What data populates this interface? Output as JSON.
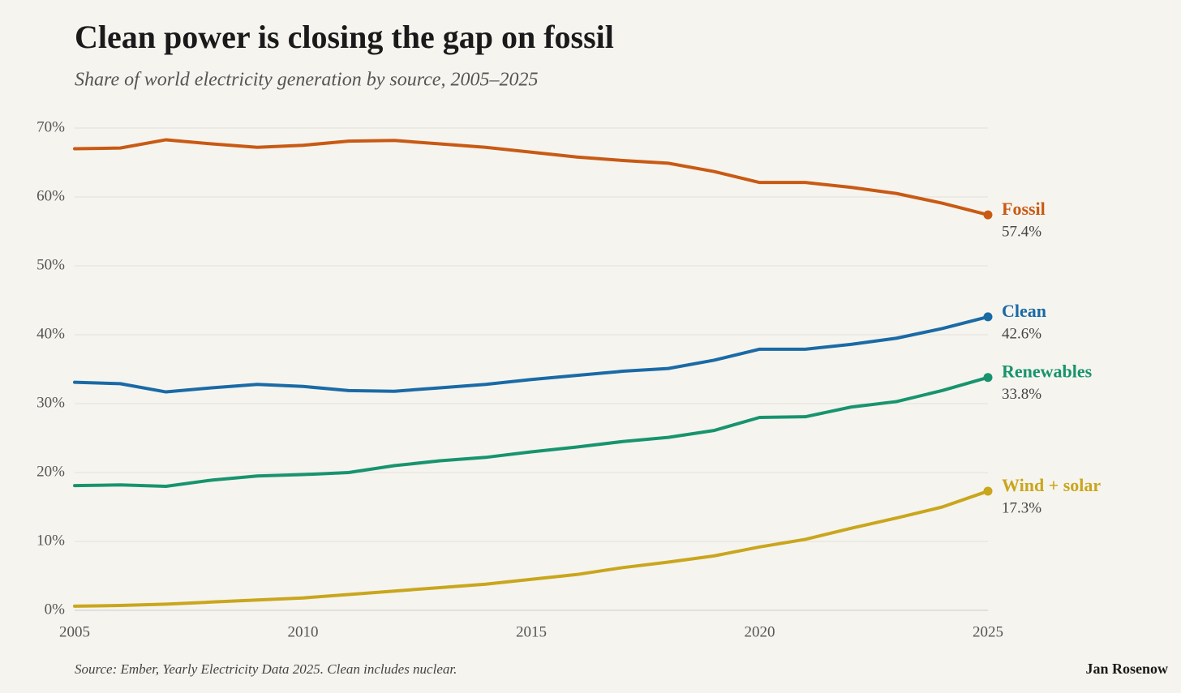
{
  "chart_data": {
    "type": "line",
    "title": "Clean power is closing the gap on fossil",
    "subtitle": "Share of world electricity generation by source, 2005–2025",
    "source": "Source: Ember, Yearly Electricity Data 2025. Clean includes nuclear.",
    "author": "Jan Rosenow",
    "x": [
      2005,
      2006,
      2007,
      2008,
      2009,
      2010,
      2011,
      2012,
      2013,
      2014,
      2015,
      2016,
      2017,
      2018,
      2019,
      2020,
      2021,
      2022,
      2023,
      2024,
      2025
    ],
    "xlim": [
      2005,
      2025
    ],
    "xticks": [
      2005,
      2010,
      2015,
      2020,
      2025
    ],
    "ylim": [
      0,
      70
    ],
    "yticks": [
      {
        "value": 0,
        "label": "0%"
      },
      {
        "value": 10,
        "label": "10%"
      },
      {
        "value": 20,
        "label": "20%"
      },
      {
        "value": 30,
        "label": "30%"
      },
      {
        "value": 40,
        "label": "40%"
      },
      {
        "value": 50,
        "label": "50%"
      },
      {
        "value": 60,
        "label": "60%"
      },
      {
        "value": 70,
        "label": "70%"
      }
    ],
    "grid": true,
    "series": [
      {
        "name": "Fossil",
        "color": "#c85a14",
        "values": [
          67.0,
          67.1,
          68.3,
          67.7,
          67.2,
          67.5,
          68.1,
          68.2,
          67.7,
          67.2,
          66.5,
          65.8,
          65.3,
          64.9,
          63.7,
          62.1,
          62.1,
          61.4,
          60.5,
          59.1,
          57.4
        ],
        "value_labels": [
          null,
          null,
          null,
          null,
          null,
          null,
          null,
          null,
          null,
          null,
          null,
          null,
          null,
          null,
          null,
          null,
          null,
          null,
          null,
          null,
          "57.4%"
        ]
      },
      {
        "name": "Clean",
        "color": "#1a6aa6",
        "values": [
          33.1,
          32.9,
          31.7,
          32.3,
          32.8,
          32.5,
          31.9,
          31.8,
          32.3,
          32.8,
          33.5,
          34.1,
          34.7,
          35.1,
          36.3,
          37.9,
          37.9,
          38.6,
          39.5,
          40.9,
          42.6
        ],
        "value_labels": [
          null,
          null,
          null,
          null,
          null,
          null,
          null,
          null,
          null,
          null,
          null,
          null,
          null,
          null,
          null,
          null,
          null,
          null,
          null,
          null,
          "42.6%"
        ]
      },
      {
        "name": "Renewables",
        "color": "#17946e",
        "values": [
          18.1,
          18.2,
          18.0,
          18.9,
          19.5,
          19.7,
          20.0,
          21.0,
          21.7,
          22.2,
          23.0,
          23.7,
          24.5,
          25.1,
          26.1,
          28.0,
          28.1,
          29.5,
          30.3,
          31.9,
          33.8
        ],
        "value_labels": [
          null,
          null,
          null,
          null,
          null,
          null,
          null,
          null,
          null,
          null,
          null,
          null,
          null,
          null,
          null,
          null,
          null,
          null,
          null,
          null,
          "33.8%"
        ]
      },
      {
        "name": "Wind + solar",
        "color": "#c9a61c",
        "values": [
          0.6,
          0.7,
          0.9,
          1.2,
          1.5,
          1.8,
          2.3,
          2.8,
          3.3,
          3.8,
          4.5,
          5.2,
          6.2,
          7.0,
          7.9,
          9.2,
          10.3,
          11.9,
          13.4,
          15.0,
          17.3
        ],
        "value_labels": [
          null,
          null,
          null,
          null,
          null,
          null,
          null,
          null,
          null,
          null,
          null,
          null,
          null,
          null,
          null,
          null,
          null,
          null,
          null,
          null,
          "17.3%"
        ]
      }
    ]
  }
}
